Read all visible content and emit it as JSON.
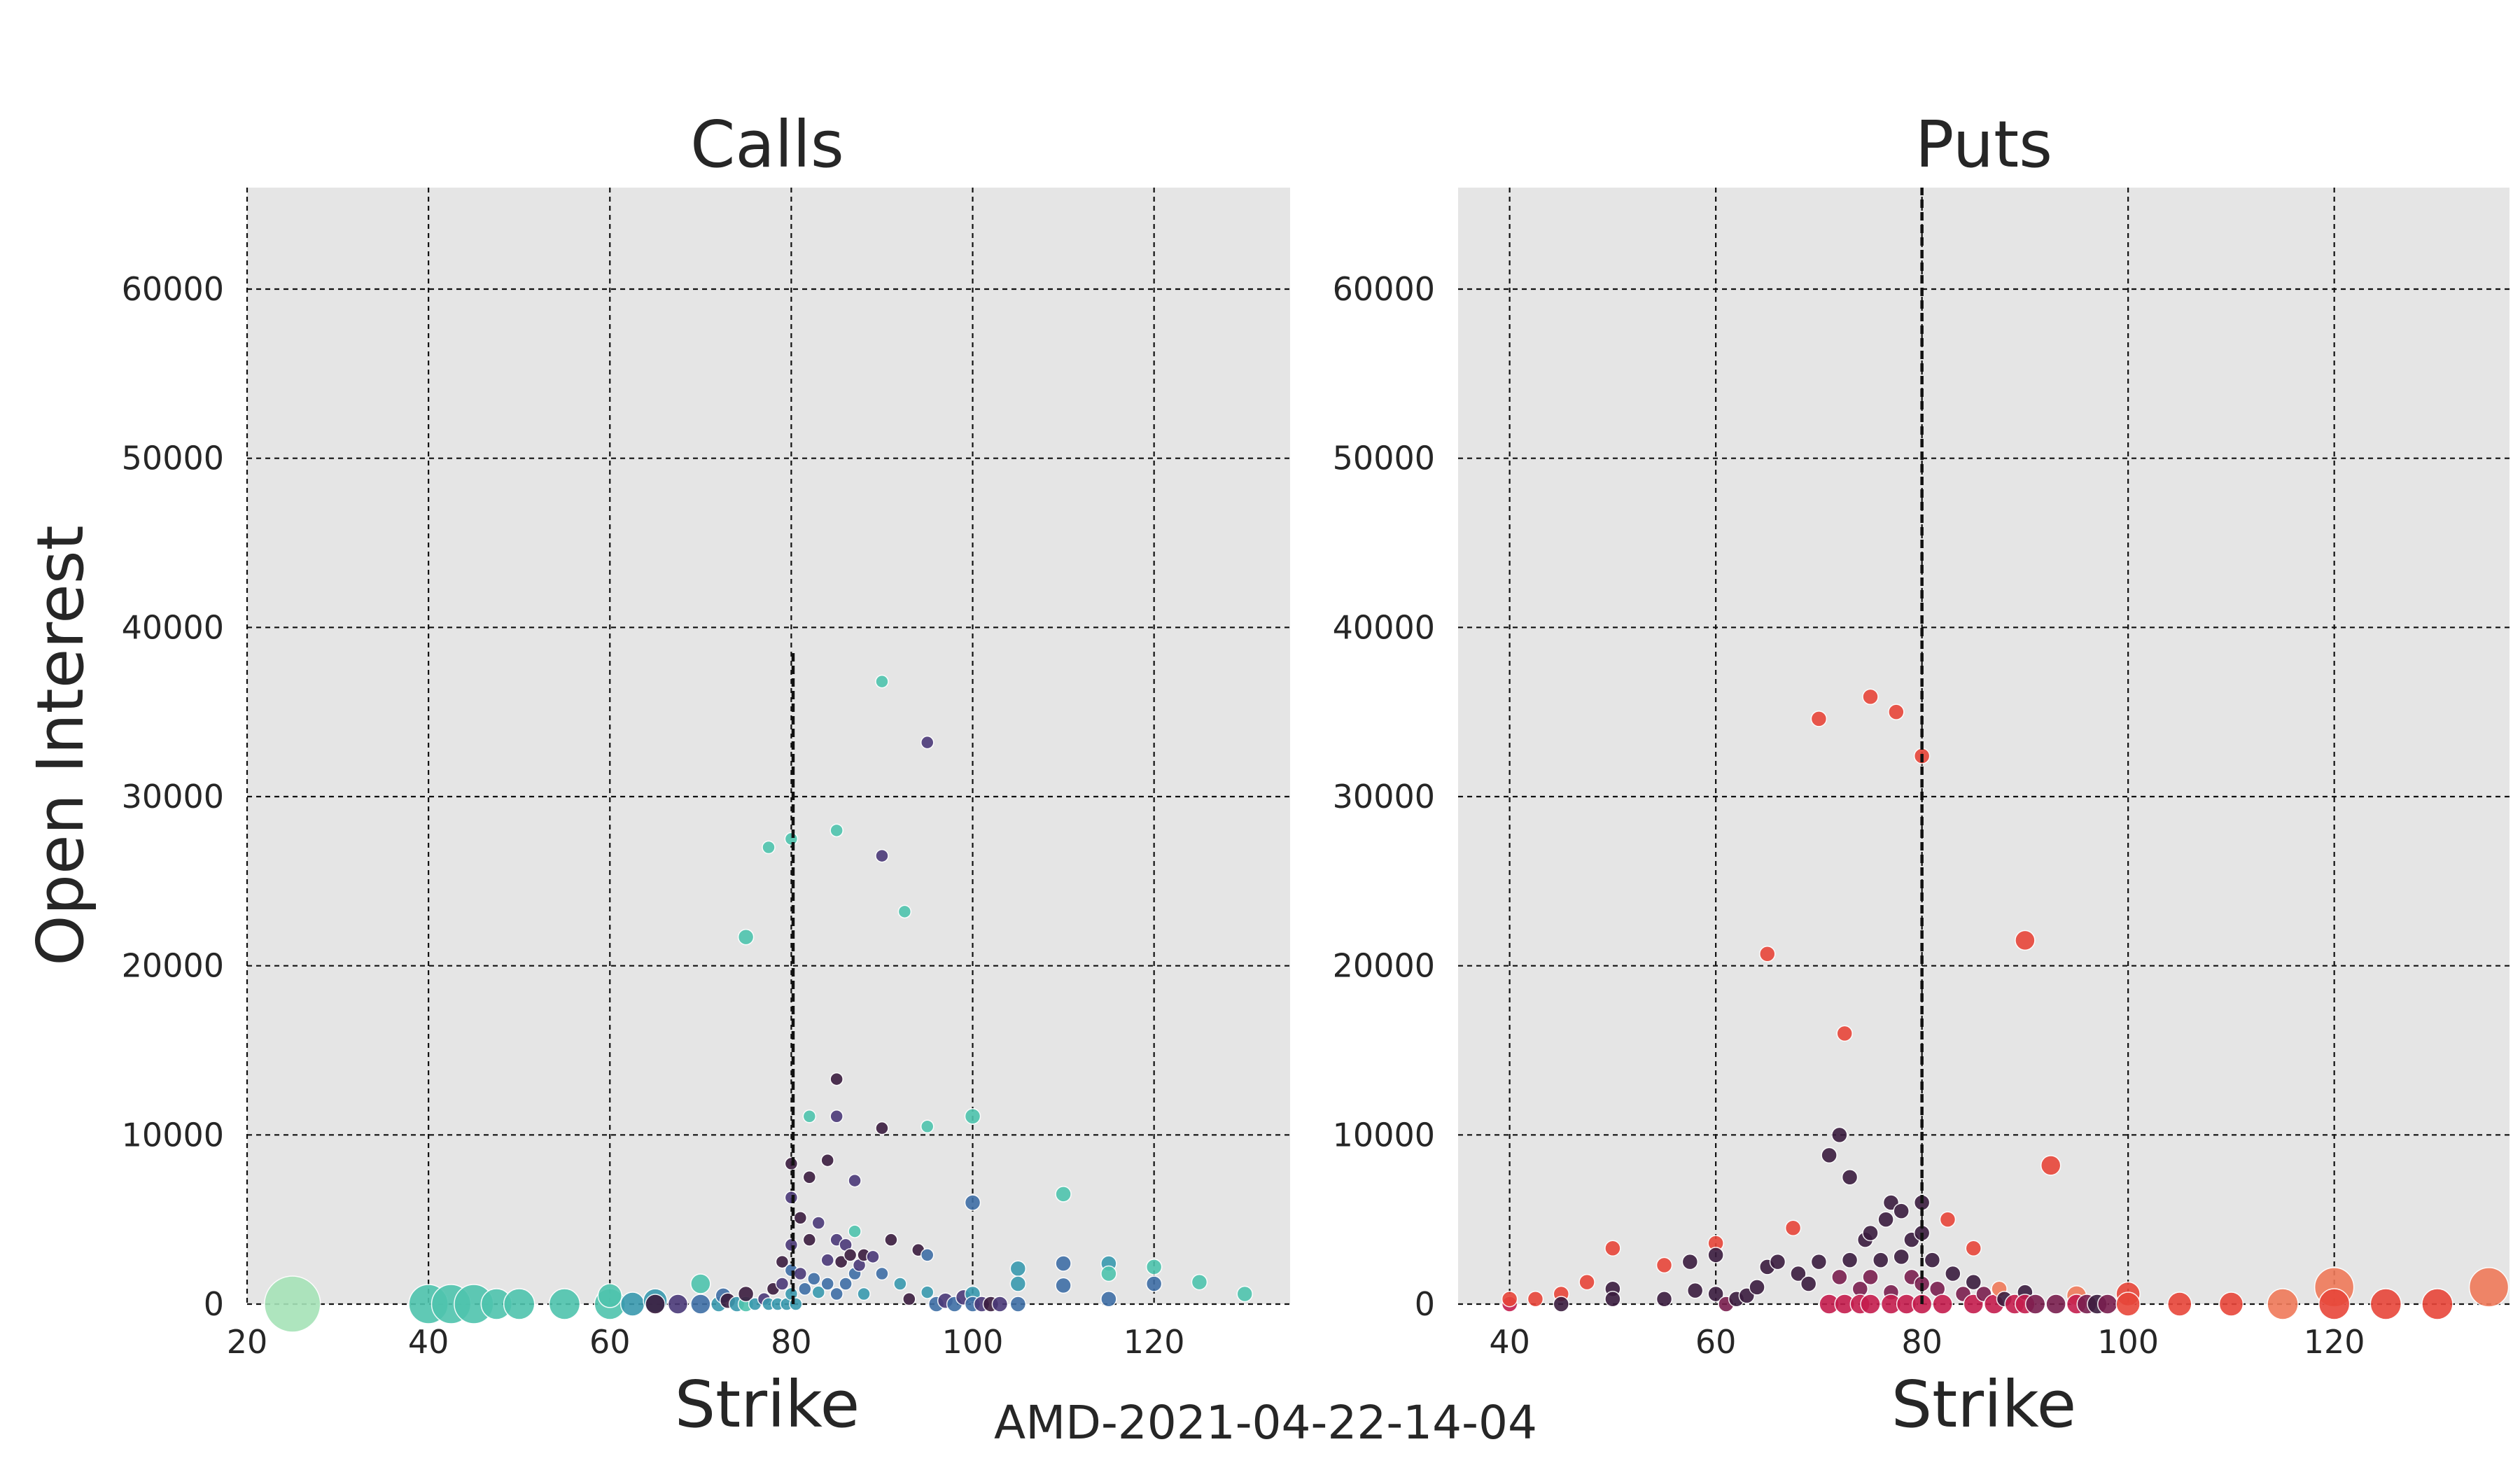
{
  "figure_label": "AMD-2021-04-22-14-04",
  "colors": {
    "panel_bg": "#e5e5e5",
    "calls_palette": [
      "#3b1d3f",
      "#4b3a79",
      "#3f6fa6",
      "#3a9aaf",
      "#4fc4ae",
      "#a6e3b8"
    ],
    "puts_palette": [
      "#3b1d3f",
      "#7a1f4f",
      "#c51d4e",
      "#e8463a",
      "#f07a5a",
      "#f6b183"
    ]
  },
  "chart_data": [
    {
      "type": "scatter",
      "title": "Calls",
      "xlabel": "Strike",
      "ylabel": "Open Interest",
      "xlim": [
        20,
        135
      ],
      "ylim": [
        0,
        66000
      ],
      "xticks": [
        20,
        40,
        60,
        80,
        100,
        120
      ],
      "yticks": [
        0,
        10000,
        20000,
        30000,
        40000,
        50000,
        60000
      ],
      "grid": true,
      "reference_line_x": 80.2,
      "reference_line_top": 38500,
      "points": [
        [
          25,
          0,
          5,
          8
        ],
        [
          40,
          0,
          4,
          6
        ],
        [
          42.5,
          0,
          4,
          6
        ],
        [
          45,
          0,
          4,
          6
        ],
        [
          47.5,
          0,
          4,
          5
        ],
        [
          50,
          0,
          4,
          5
        ],
        [
          55,
          0,
          4,
          5
        ],
        [
          60,
          0,
          4,
          5
        ],
        [
          60,
          500,
          4,
          4
        ],
        [
          62.5,
          0,
          3,
          4
        ],
        [
          65,
          200,
          3,
          4
        ],
        [
          65,
          0,
          0,
          3
        ],
        [
          67.5,
          0,
          1,
          3
        ],
        [
          70,
          0,
          2,
          3
        ],
        [
          70,
          1200,
          4,
          3
        ],
        [
          72,
          0,
          3,
          2
        ],
        [
          72.5,
          500,
          2,
          2
        ],
        [
          73,
          200,
          0,
          2
        ],
        [
          74,
          0,
          3,
          2
        ],
        [
          75,
          0,
          4,
          2
        ],
        [
          75,
          600,
          0,
          2
        ],
        [
          75,
          21700,
          4,
          2
        ],
        [
          76,
          0,
          3,
          1
        ],
        [
          77,
          300,
          1,
          1
        ],
        [
          77.5,
          0,
          3,
          1
        ],
        [
          77.5,
          27000,
          4,
          1
        ],
        [
          78,
          900,
          0,
          1
        ],
        [
          78.5,
          0,
          3,
          1
        ],
        [
          79,
          2500,
          0,
          1
        ],
        [
          79,
          1200,
          1,
          1
        ],
        [
          79.5,
          0,
          3,
          1
        ],
        [
          80,
          27500,
          4,
          1
        ],
        [
          80,
          8300,
          0,
          1
        ],
        [
          80,
          6300,
          1,
          1
        ],
        [
          80,
          3500,
          1,
          1
        ],
        [
          80,
          2000,
          2,
          1
        ],
        [
          80,
          600,
          3,
          1
        ],
        [
          80.5,
          0,
          3,
          1
        ],
        [
          81,
          5100,
          0,
          1
        ],
        [
          81,
          1800,
          1,
          1
        ],
        [
          81.5,
          900,
          2,
          1
        ],
        [
          82,
          7500,
          0,
          1
        ],
        [
          82,
          3800,
          0,
          1
        ],
        [
          82,
          11100,
          4,
          1
        ],
        [
          82.5,
          1500,
          2,
          1
        ],
        [
          83,
          4800,
          1,
          1
        ],
        [
          83,
          700,
          3,
          1
        ],
        [
          84,
          8500,
          0,
          1
        ],
        [
          84,
          2600,
          1,
          1
        ],
        [
          84,
          1200,
          2,
          1
        ],
        [
          85,
          13300,
          0,
          1
        ],
        [
          85,
          11100,
          1,
          1
        ],
        [
          85,
          28000,
          4,
          1
        ],
        [
          85,
          3800,
          1,
          1
        ],
        [
          85,
          600,
          2,
          1
        ],
        [
          85.5,
          2500,
          0,
          1
        ],
        [
          86,
          3500,
          1,
          1
        ],
        [
          86,
          1200,
          2,
          1
        ],
        [
          86.5,
          2900,
          0,
          1
        ],
        [
          87,
          4300,
          4,
          1
        ],
        [
          87,
          7300,
          1,
          1
        ],
        [
          87,
          1800,
          2,
          1
        ],
        [
          87.5,
          2300,
          1,
          1
        ],
        [
          88,
          2900,
          0,
          1
        ],
        [
          88,
          600,
          3,
          1
        ],
        [
          89,
          2800,
          1,
          1
        ],
        [
          90,
          36800,
          4,
          1
        ],
        [
          90,
          26500,
          1,
          1
        ],
        [
          90,
          10400,
          0,
          1
        ],
        [
          90,
          1800,
          2,
          1
        ],
        [
          91,
          3800,
          0,
          1
        ],
        [
          92,
          1200,
          3,
          1
        ],
        [
          92.5,
          23200,
          4,
          1
        ],
        [
          93,
          300,
          0,
          1
        ],
        [
          94,
          3200,
          0,
          1
        ],
        [
          95,
          33200,
          1,
          1
        ],
        [
          95,
          10500,
          4,
          1
        ],
        [
          95,
          2900,
          2,
          1
        ],
        [
          95,
          700,
          3,
          1
        ],
        [
          96,
          0,
          2,
          2
        ],
        [
          97,
          200,
          1,
          2
        ],
        [
          98,
          0,
          2,
          2
        ],
        [
          99,
          400,
          1,
          2
        ],
        [
          100,
          11100,
          4,
          2
        ],
        [
          100,
          6000,
          2,
          2
        ],
        [
          100,
          600,
          3,
          2
        ],
        [
          100,
          0,
          2,
          2
        ],
        [
          101,
          0,
          1,
          2
        ],
        [
          102,
          0,
          0,
          2
        ],
        [
          103,
          0,
          1,
          2
        ],
        [
          105,
          2100,
          3,
          2
        ],
        [
          105,
          1200,
          3,
          2
        ],
        [
          105,
          0,
          2,
          2
        ],
        [
          110,
          6500,
          4,
          2
        ],
        [
          110,
          2400,
          2,
          2
        ],
        [
          110,
          1100,
          2,
          2
        ],
        [
          115,
          2400,
          3,
          2
        ],
        [
          115,
          1800,
          4,
          2
        ],
        [
          115,
          300,
          2,
          2
        ],
        [
          120,
          2200,
          4,
          2
        ],
        [
          120,
          1200,
          2,
          2
        ],
        [
          125,
          1300,
          4,
          2
        ],
        [
          130,
          600,
          4,
          2
        ]
      ]
    },
    {
      "type": "scatter",
      "title": "Puts",
      "xlabel": "Strike",
      "ylabel": "",
      "xlim": [
        35,
        137
      ],
      "ylim": [
        0,
        66000
      ],
      "xticks": [
        40,
        60,
        80,
        100,
        120
      ],
      "yticks": [
        0,
        10000,
        20000,
        30000,
        40000,
        50000,
        60000
      ],
      "grid": true,
      "reference_line_x": 80,
      "reference_line_top": 66000,
      "points": [
        [
          40,
          0,
          2,
          2
        ],
        [
          40,
          300,
          3,
          2
        ],
        [
          42.5,
          300,
          3,
          2
        ],
        [
          45,
          600,
          3,
          2
        ],
        [
          45,
          0,
          0,
          2
        ],
        [
          47.5,
          1300,
          3,
          2
        ],
        [
          50,
          3300,
          3,
          2
        ],
        [
          50,
          900,
          0,
          2
        ],
        [
          50,
          300,
          0,
          2
        ],
        [
          55,
          2300,
          3,
          2
        ],
        [
          55,
          300,
          0,
          2
        ],
        [
          57.5,
          2500,
          0,
          2
        ],
        [
          58,
          800,
          0,
          2
        ],
        [
          60,
          3600,
          3,
          2
        ],
        [
          60,
          2900,
          0,
          2
        ],
        [
          60,
          600,
          0,
          2
        ],
        [
          61,
          0,
          1,
          2
        ],
        [
          62,
          300,
          0,
          2
        ],
        [
          63,
          500,
          0,
          2
        ],
        [
          64,
          1000,
          0,
          2
        ],
        [
          65,
          20700,
          3,
          2
        ],
        [
          65,
          2200,
          0,
          2
        ],
        [
          66,
          2500,
          0,
          2
        ],
        [
          67.5,
          4500,
          3,
          2
        ],
        [
          68,
          1800,
          0,
          2
        ],
        [
          69,
          1200,
          0,
          2
        ],
        [
          70,
          34600,
          3,
          2
        ],
        [
          70,
          2500,
          0,
          2
        ],
        [
          71,
          8800,
          0,
          2
        ],
        [
          71,
          0,
          2,
          3
        ],
        [
          72,
          10000,
          0,
          2
        ],
        [
          72,
          1600,
          1,
          2
        ],
        [
          72.5,
          16000,
          3,
          2
        ],
        [
          72.5,
          0,
          2,
          3
        ],
        [
          73,
          2600,
          0,
          2
        ],
        [
          73,
          7500,
          0,
          2
        ],
        [
          74,
          900,
          1,
          2
        ],
        [
          74,
          0,
          2,
          3
        ],
        [
          74.5,
          3800,
          0,
          2
        ],
        [
          75,
          35900,
          3,
          2
        ],
        [
          75,
          4200,
          0,
          2
        ],
        [
          75,
          1600,
          1,
          2
        ],
        [
          75,
          0,
          2,
          3
        ],
        [
          76,
          2600,
          0,
          2
        ],
        [
          76.5,
          5000,
          0,
          2
        ],
        [
          77,
          6000,
          0,
          2
        ],
        [
          77,
          700,
          1,
          2
        ],
        [
          77,
          0,
          2,
          3
        ],
        [
          77.5,
          35000,
          3,
          2
        ],
        [
          78,
          5500,
          0,
          2
        ],
        [
          78,
          2800,
          0,
          2
        ],
        [
          78.5,
          0,
          2,
          3
        ],
        [
          79,
          1600,
          1,
          2
        ],
        [
          79,
          3800,
          0,
          2
        ],
        [
          80,
          32400,
          3,
          2
        ],
        [
          80,
          6000,
          0,
          2
        ],
        [
          80,
          4200,
          0,
          2
        ],
        [
          80,
          1200,
          1,
          2
        ],
        [
          80,
          0,
          2,
          3
        ],
        [
          81,
          2600,
          0,
          2
        ],
        [
          81.5,
          900,
          1,
          2
        ],
        [
          82,
          0,
          2,
          3
        ],
        [
          82.5,
          5000,
          3,
          2
        ],
        [
          83,
          1800,
          0,
          2
        ],
        [
          84,
          600,
          1,
          2
        ],
        [
          85,
          3300,
          3,
          2
        ],
        [
          85,
          1300,
          0,
          2
        ],
        [
          85,
          0,
          2,
          3
        ],
        [
          86,
          600,
          1,
          2
        ],
        [
          87,
          0,
          2,
          3
        ],
        [
          87.5,
          900,
          4,
          2
        ],
        [
          88,
          300,
          0,
          2
        ],
        [
          89,
          0,
          2,
          3
        ],
        [
          90,
          21500,
          3,
          3
        ],
        [
          90,
          700,
          0,
          2
        ],
        [
          90,
          0,
          2,
          3
        ],
        [
          91,
          0,
          1,
          3
        ],
        [
          92.5,
          8200,
          3,
          3
        ],
        [
          93,
          0,
          1,
          3
        ],
        [
          95,
          500,
          4,
          3
        ],
        [
          95,
          0,
          2,
          3
        ],
        [
          96,
          0,
          1,
          3
        ],
        [
          97,
          0,
          0,
          3
        ],
        [
          98,
          0,
          1,
          3
        ],
        [
          100,
          600,
          3,
          4
        ],
        [
          100,
          0,
          3,
          4
        ],
        [
          105,
          0,
          3,
          4
        ],
        [
          110,
          0,
          3,
          4
        ],
        [
          115,
          0,
          4,
          5
        ],
        [
          120,
          1000,
          4,
          6
        ],
        [
          120,
          0,
          3,
          5
        ],
        [
          125,
          0,
          3,
          5
        ],
        [
          130,
          0,
          3,
          5
        ],
        [
          135,
          1000,
          4,
          6
        ]
      ]
    }
  ]
}
